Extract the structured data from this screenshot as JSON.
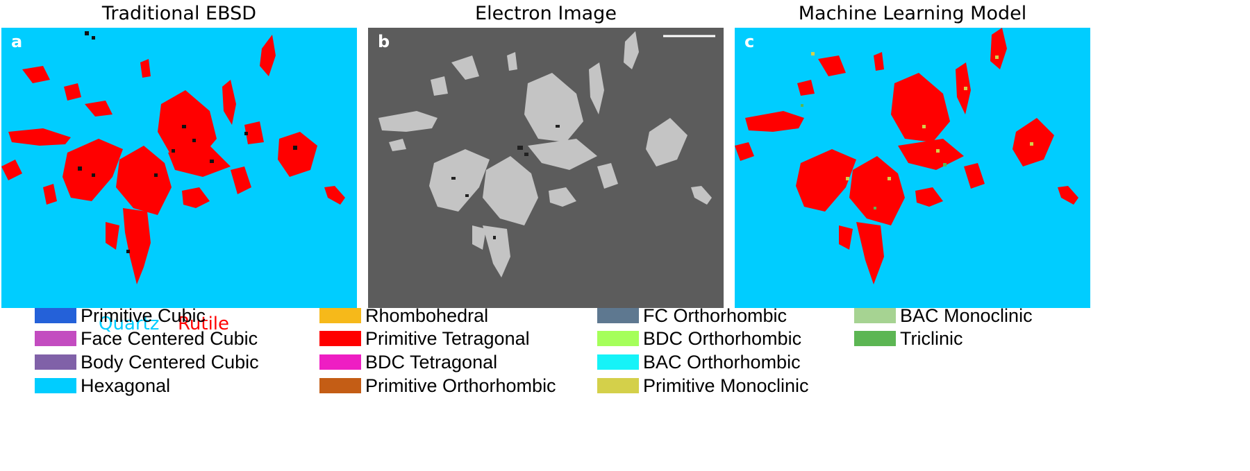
{
  "panels": {
    "a": {
      "title": "Traditional EBSD",
      "letter": "a"
    },
    "b": {
      "title": "Electron Image",
      "letter": "b"
    },
    "c": {
      "title": "Machine Learning Model",
      "letter": "c"
    }
  },
  "phase_labels": {
    "quartz": "Quartz",
    "rutile": "Rutile"
  },
  "colors": {
    "quartz": "#00cdff",
    "rutile": "#ff0000",
    "electron_bg": "#5c5c5c",
    "grain": "#c4c4c4"
  },
  "legend": [
    {
      "label": "Primitive Cubic",
      "color": "#2461d9"
    },
    {
      "label": "Face Centered Cubic",
      "color": "#c34cc0"
    },
    {
      "label": "Body Centered Cubic",
      "color": "#8061a8"
    },
    {
      "label": "Hexagonal",
      "color": "#00cdff"
    },
    {
      "label": "Rhombohedral",
      "color": "#f6b91a"
    },
    {
      "label": "Primitive Tetragonal",
      "color": "#ff0000"
    },
    {
      "label": "BDC Tetragonal",
      "color": "#ee1ec3"
    },
    {
      "label": "Primitive Orthorhombic",
      "color": "#c45d15"
    },
    {
      "label": "FC Orthorhombic",
      "color": "#5e7890"
    },
    {
      "label": "BDC Orthorhombic",
      "color": "#a5ff5a"
    },
    {
      "label": "BAC Orthorhombic",
      "color": "#16f3f8"
    },
    {
      "label": "Primitive Monoclinic",
      "color": "#d4d04a"
    },
    {
      "label": "BAC Monoclinic",
      "color": "#a6d392"
    },
    {
      "label": "Triclinic",
      "color": "#5cb653"
    }
  ]
}
